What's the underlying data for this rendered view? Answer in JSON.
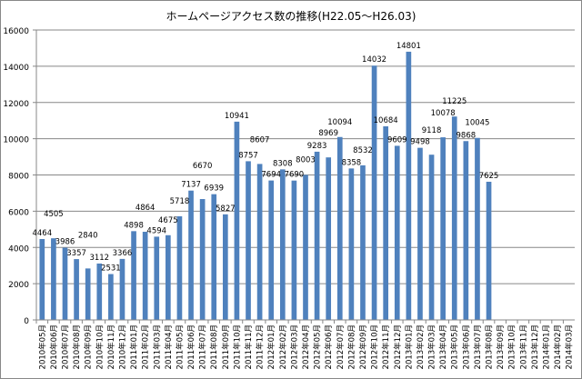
{
  "chart_data": {
    "type": "bar",
    "title": "ホームページアクセス数の推移(H22.05～H26.03)",
    "xlabel": "",
    "ylabel": "",
    "ylim": [
      0,
      16000
    ],
    "yticks": [
      0,
      2000,
      4000,
      6000,
      8000,
      10000,
      12000,
      14000,
      16000
    ],
    "grid": true,
    "legend": "none",
    "bar_color": "#4F81BD",
    "categories": [
      "2010年05月",
      "2010年06月",
      "2010年07月",
      "2010年08月",
      "2010年09月",
      "2010年10月",
      "2010年11月",
      "2010年12月",
      "2011年01月",
      "2011年02月",
      "2011年03月",
      "2011年04月",
      "2011年05月",
      "2011年06月",
      "2011年07月",
      "2011年08月",
      "2011年09月",
      "2011年10月",
      "2011年11月",
      "2011年12月",
      "2012年01月",
      "2012年02月",
      "2012年03月",
      "2012年04月",
      "2012年05月",
      "2012年06月",
      "2012年07月",
      "2012年08月",
      "2012年09月",
      "2012年10月",
      "2012年11月",
      "2012年12月",
      "2013年01月",
      "2013年02月",
      "2013年03月",
      "2013年04月",
      "2013年05月",
      "2013年06月",
      "2013年07月",
      "2013年08月",
      "2013年09月",
      "2013年10月",
      "2013年11月",
      "2013年12月",
      "2014年01月",
      "2014年02月",
      "2014年03月"
    ],
    "values": [
      4464,
      4505,
      3986,
      3357,
      2840,
      3112,
      2531,
      3366,
      4898,
      4864,
      4594,
      4675,
      5718,
      7137,
      6670,
      6939,
      5827,
      10941,
      8757,
      8607,
      7694,
      8308,
      7690,
      8003,
      9283,
      8969,
      10094,
      8358,
      8532,
      14032,
      10684,
      9609,
      14801,
      9498,
      9118,
      10078,
      11225,
      9868,
      10045,
      7625,
      null,
      null,
      null,
      null,
      null,
      null,
      null
    ]
  }
}
